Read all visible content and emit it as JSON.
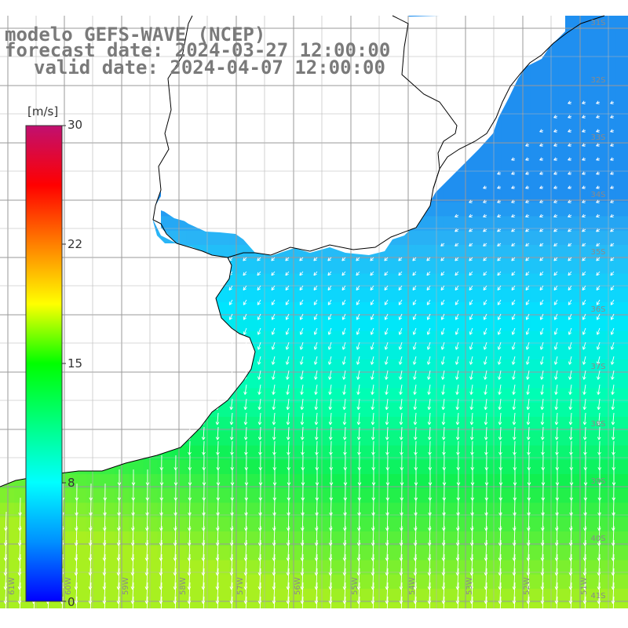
{
  "title": {
    "line1": "modelo GEFS-WAVE (NCEP)",
    "line2": "forecast date: 2024-03-27 12:00:00",
    "line3": "valid date: 2024-04-07 12:00:00"
  },
  "colorbar": {
    "unit": "[m/s]",
    "ticks": [
      "30",
      "22",
      "15",
      "8",
      "0"
    ],
    "gradient_stops": [
      "#0000ff",
      "#0090ff",
      "#00ffff",
      "#00ff80",
      "#00ff00",
      "#ffff00",
      "#ff8000",
      "#ff0000",
      "#c01070"
    ]
  },
  "map": {
    "lat_labels": [
      "31S",
      "32S",
      "33S",
      "34S",
      "35S",
      "36S",
      "37S",
      "38S",
      "39S",
      "40S",
      "41S"
    ],
    "lon_labels": [
      "61W",
      "60W",
      "59W",
      "58W",
      "57W",
      "56W",
      "55W",
      "54W",
      "53W",
      "52W",
      "51W"
    ],
    "field": "wind speed and direction",
    "wind_direction": "from north-east to south-west",
    "land_color": "#ffffff",
    "gridline_color": "#9a9a9a"
  }
}
